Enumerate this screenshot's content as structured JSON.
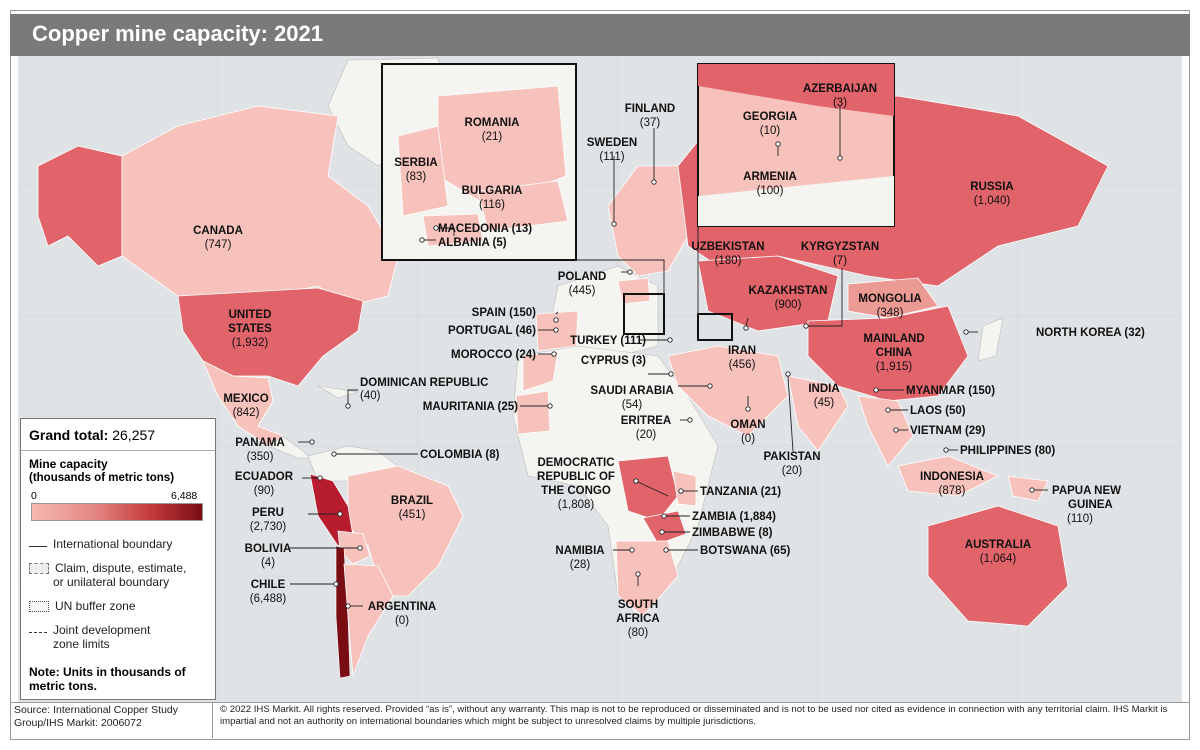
{
  "title": "Copper mine capacity: 2021",
  "colors": {
    "ocean": "#dfe3e6",
    "land_none": "#f4f4f1",
    "low": "#f6c2bb",
    "mid": "#ec9a94",
    "high": "#e0646a",
    "max": "#b81d2f"
  },
  "legend": {
    "grand_total_label": "Grand total:",
    "grand_total_value": "26,257",
    "title": "Mine capacity",
    "subtitle": "(thousands of metric tons)",
    "scale_min": "0",
    "scale_max": "6,488",
    "rows": [
      "International boundary",
      "Claim, dispute, estimate,",
      "or unilateral boundary",
      "UN buffer zone",
      "Joint development",
      "zone limits"
    ],
    "note": [
      "Note: Units in thousands of",
      "metric tons."
    ]
  },
  "source": "Source: International Copper Study Group/IHS Markit: 2006072",
  "copyright": "© 2022 IHS Markit. All rights reserved. Provided “as is”, without any warranty. This map is not to be reproduced or disseminated and is not to be used nor cited as evidence in connection with any territorial claim. IHS Markit is impartial and not an authority on international boundaries which might be subject to unresolved claims by multiple jurisdictions.",
  "countries": {
    "canada": "CANADA",
    "canada_v": "(747)",
    "us1": "UNITED",
    "us2": "STATES",
    "us_v": "(1,932)",
    "mexico": "MEXICO",
    "mexico_v": "(842)",
    "dominican": "DOMINICAN REPUBLIC",
    "dominican_v": "(40)",
    "panama": "PANAMA",
    "panama_v": "(350)",
    "colombia": "COLOMBIA (8)",
    "ecuador": "ECUADOR",
    "ecuador_v": "(90)",
    "peru": "PERU",
    "peru_v": "(2,730)",
    "brazil": "BRAZIL",
    "brazil_v": "(451)",
    "bolivia": "BOLIVIA",
    "bolivia_v": "(4)",
    "chile": "CHILE",
    "chile_v": "(6,488)",
    "argentina": "ARGENTINA",
    "argentina_v": "(0)",
    "spain": "SPAIN (150)",
    "portugal": "PORTUGAL (46)",
    "morocco": "MOROCCO (24)",
    "mauritania": "MAURITANIA (25)",
    "finland": "FINLAND",
    "finland_v": "(37)",
    "sweden": "SWEDEN",
    "sweden_v": "(111)",
    "poland": "POLAND",
    "poland_v": "(445)",
    "turkey": "TURKEY (111)",
    "cyprus": "CYPRUS (3)",
    "saudi": "SAUDI ARABIA",
    "saudi_v": "(54)",
    "eritrea": "ERITREA",
    "eritrea_v": "(20)",
    "oman": "OMAN",
    "oman_v": "(0)",
    "iran": "IRAN",
    "iran_v": "(456)",
    "pakistan": "PAKISTAN",
    "pakistan_v": "(20)",
    "india": "INDIA",
    "india_v": "(45)",
    "drc1": "DEMOCRATIC",
    "drc2": "REPUBLIC OF",
    "drc3": "THE CONGO",
    "drc_v": "(1,808)",
    "tanzania": "TANZANIA (21)",
    "zambia": "ZAMBIA (1,884)",
    "zimbabwe": "ZIMBABWE (8)",
    "botswana": "BOTSWANA (65)",
    "namibia": "NAMIBIA",
    "namibia_v": "(28)",
    "safrica1": "SOUTH",
    "safrica2": "AFRICA",
    "safrica_v": "(80)",
    "russia": "RUSSIA",
    "russia_v": "(1,040)",
    "uzbekistan": "UZBEKISTAN",
    "uzbekistan_v": "(180)",
    "kyrgyzstan": "KYRGYZSTAN",
    "kyrgyzstan_v": "(7)",
    "kazakhstan": "KAZAKHSTAN",
    "kazakhstan_v": "(900)",
    "mongolia": "MONGOLIA",
    "mongolia_v": "(348)",
    "china1": "MAINLAND",
    "china2": "CHINA",
    "china_v": "(1,915)",
    "nkorea": "NORTH KOREA (32)",
    "myanmar": "MYANMAR (150)",
    "laos": "LAOS (50)",
    "vietnam": "VIETNAM (29)",
    "philippines": "PHILIPPINES (80)",
    "indonesia": "INDONESIA",
    "indonesia_v": "(878)",
    "png1": "PAPUA NEW",
    "png2": "GUINEA",
    "png_v": "(110)",
    "australia": "AUSTRALIA",
    "australia_v": "(1,064)",
    "romania": "ROMANIA",
    "romania_v": "(21)",
    "serbia": "SERBIA",
    "serbia_v": "(83)",
    "bulgaria": "BULGARIA",
    "bulgaria_v": "(116)",
    "macedonia": "MACEDONIA (13)",
    "albania": "ALBANIA (5)",
    "azerbaijan": "AZERBAIJAN",
    "azerbaijan_v": "(3)",
    "georgia": "GEORGIA",
    "georgia_v": "(10)",
    "armenia": "ARMENIA",
    "armenia_v": "(100)"
  }
}
